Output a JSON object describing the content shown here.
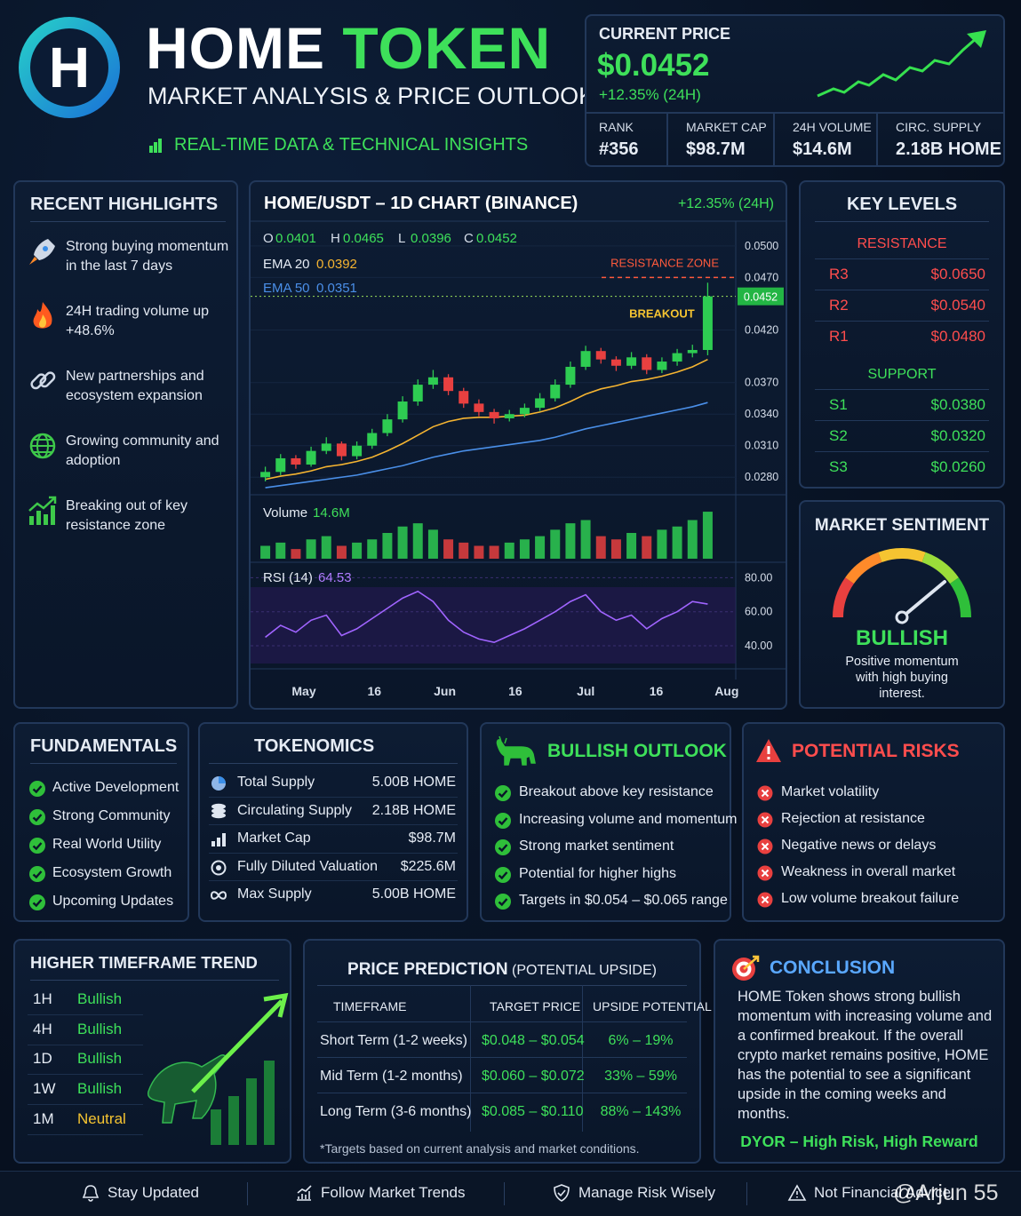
{
  "header": {
    "logo": "H",
    "title_1": "HOME",
    "title_2": "TOKEN",
    "subtitle": "MARKET ANALYSIS & PRICE OUTLOOK",
    "tagline": "REAL-TIME DATA & TECHNICAL INSIGHTS"
  },
  "price_card": {
    "label": "CURRENT PRICE",
    "price": "$0.0452",
    "change": "+12.35% (24H)",
    "stats": [
      {
        "label": "RANK",
        "value": "#356"
      },
      {
        "label": "MARKET CAP",
        "value": "$98.7M"
      },
      {
        "label": "24H VOLUME",
        "value": "$14.6M"
      },
      {
        "label": "CIRC. SUPPLY",
        "value": "2.18B HOME"
      }
    ]
  },
  "highlights": {
    "title": "RECENT HIGHLIGHTS",
    "items": [
      "Strong buying momentum in the last 7 days",
      "24H trading volume up +48.6%",
      "New partnerships and ecosystem expansion",
      "Growing community and adoption",
      "Breaking out of key resistance zone"
    ]
  },
  "chart_data": {
    "type": "candlestick",
    "title": "HOME/USDT – 1D CHART (BINANCE)",
    "change": "+12.35% (24H)",
    "ohlc_labels": [
      "O",
      "H",
      "L",
      "C"
    ],
    "up_color": "#2ecc52",
    "down_color": "#e84040",
    "candles": [
      [
        0.028,
        0.029,
        0.0276,
        0.0285
      ],
      [
        0.0285,
        0.0302,
        0.0282,
        0.0298
      ],
      [
        0.0298,
        0.0301,
        0.0288,
        0.0292
      ],
      [
        0.0292,
        0.0309,
        0.029,
        0.0305
      ],
      [
        0.0305,
        0.0318,
        0.0302,
        0.0312
      ],
      [
        0.0312,
        0.0314,
        0.0296,
        0.03
      ],
      [
        0.03,
        0.0314,
        0.0297,
        0.031
      ],
      [
        0.031,
        0.0326,
        0.0307,
        0.0322
      ],
      [
        0.0322,
        0.034,
        0.0319,
        0.0335
      ],
      [
        0.0335,
        0.0357,
        0.0332,
        0.0352
      ],
      [
        0.0352,
        0.0373,
        0.0348,
        0.0368
      ],
      [
        0.0368,
        0.0382,
        0.0364,
        0.0375
      ],
      [
        0.0375,
        0.0378,
        0.0358,
        0.0362
      ],
      [
        0.0362,
        0.0365,
        0.0346,
        0.035
      ],
      [
        0.035,
        0.0354,
        0.0338,
        0.0342
      ],
      [
        0.0342,
        0.0345,
        0.0331,
        0.0336
      ],
      [
        0.0336,
        0.0344,
        0.0333,
        0.034
      ],
      [
        0.034,
        0.035,
        0.0337,
        0.0346
      ],
      [
        0.0346,
        0.036,
        0.0343,
        0.0355
      ],
      [
        0.0355,
        0.0373,
        0.0352,
        0.0368
      ],
      [
        0.0368,
        0.039,
        0.0365,
        0.0385
      ],
      [
        0.0385,
        0.0405,
        0.0382,
        0.04
      ],
      [
        0.04,
        0.0403,
        0.0388,
        0.0392
      ],
      [
        0.0392,
        0.0395,
        0.0381,
        0.0386
      ],
      [
        0.0386,
        0.0399,
        0.0383,
        0.0394
      ],
      [
        0.0394,
        0.0397,
        0.0378,
        0.0382
      ],
      [
        0.0382,
        0.0394,
        0.0379,
        0.039
      ],
      [
        0.039,
        0.0402,
        0.0386,
        0.0398
      ],
      [
        0.0398,
        0.0406,
        0.0394,
        0.0401
      ],
      [
        0.0401,
        0.0465,
        0.0396,
        0.0452
      ]
    ],
    "series": [
      {
        "name": "EMA 20",
        "color": "#f5b431",
        "values": [
          0.0278,
          0.0281,
          0.0283,
          0.0286,
          0.029,
          0.0292,
          0.0295,
          0.0299,
          0.0305,
          0.0312,
          0.032,
          0.0328,
          0.0333,
          0.0336,
          0.0337,
          0.0337,
          0.0338,
          0.0339,
          0.0342,
          0.0346,
          0.0352,
          0.0359,
          0.0364,
          0.0367,
          0.0371,
          0.0373,
          0.0376,
          0.038,
          0.0385,
          0.0392
        ]
      },
      {
        "name": "EMA 50",
        "color": "#4a8fe8",
        "values": [
          0.027,
          0.0272,
          0.0274,
          0.0276,
          0.0278,
          0.028,
          0.0282,
          0.0285,
          0.0288,
          0.0291,
          0.0295,
          0.0299,
          0.0302,
          0.0305,
          0.0307,
          0.0309,
          0.0311,
          0.0313,
          0.0315,
          0.0318,
          0.0322,
          0.0326,
          0.0329,
          0.0332,
          0.0335,
          0.0338,
          0.0341,
          0.0344,
          0.0347,
          0.0351
        ]
      }
    ],
    "ylim": [
      0.0265,
      0.051
    ],
    "yticks": [
      {
        "value": 0.05,
        "label": "0.0500"
      },
      {
        "value": 0.047,
        "label": "0.0470"
      },
      {
        "value": 0.042,
        "label": "0.0420"
      },
      {
        "value": 0.037,
        "label": "0.0370"
      },
      {
        "value": 0.034,
        "label": "0.0340"
      },
      {
        "value": 0.031,
        "label": "0.0310"
      },
      {
        "value": 0.028,
        "label": "0.0280"
      }
    ],
    "resistance": {
      "label": "RESISTANCE ZONE",
      "value": 0.047
    },
    "breakout_label": "BREAKOUT",
    "volume": {
      "label": "Volume",
      "reading": "14.6M",
      "ylim": [
        0,
        16
      ],
      "values": [
        4,
        5,
        3,
        6,
        7,
        4,
        5,
        6,
        8,
        10,
        11,
        9,
        6,
        5,
        4,
        4,
        5,
        6,
        7,
        9,
        11,
        12,
        7,
        6,
        8,
        7,
        9,
        10,
        12,
        14.6
      ]
    },
    "rsi": {
      "label": "RSI (14)",
      "color": "#a064ff",
      "ylim": [
        28,
        87
      ],
      "yticks": [
        {
          "value": 80,
          "label": "80.00"
        },
        {
          "value": 60,
          "label": "60.00"
        },
        {
          "value": 40,
          "label": "40.00"
        }
      ],
      "values": [
        45,
        52,
        48,
        55,
        58,
        46,
        50,
        56,
        62,
        68,
        72,
        66,
        55,
        48,
        44,
        42,
        46,
        50,
        55,
        60,
        66,
        70,
        60,
        55,
        58,
        50,
        56,
        60,
        66,
        64.53
      ]
    },
    "xtick_labels": [
      "May",
      "16",
      "Jun",
      "16",
      "Jul",
      "16",
      "Aug"
    ]
  },
  "key_levels": {
    "title": "KEY LEVELS",
    "resistance_title": "RESISTANCE",
    "resistance": [
      {
        "name": "R3",
        "value": "$0.0650"
      },
      {
        "name": "R2",
        "value": "$0.0540"
      },
      {
        "name": "R1",
        "value": "$0.0480"
      }
    ],
    "support_title": "SUPPORT",
    "support": [
      {
        "name": "S1",
        "value": "$0.0380"
      },
      {
        "name": "S2",
        "value": "$0.0320"
      },
      {
        "name": "S3",
        "value": "$0.0260"
      }
    ]
  },
  "sentiment": {
    "title": "MARKET SENTIMENT",
    "reading": "BULLISH",
    "description": "Positive momentum with high buying interest."
  },
  "fundamentals": {
    "title": "FUNDAMENTALS",
    "items": [
      "Active Development",
      "Strong Community",
      "Real World Utility",
      "Ecosystem Growth",
      "Upcoming Updates"
    ]
  },
  "tokenomics": {
    "title": "TOKENOMICS",
    "rows": [
      [
        "Total Supply",
        "5.00B HOME"
      ],
      [
        "Circulating Supply",
        "2.18B HOME"
      ],
      [
        "Market Cap",
        "$98.7M"
      ],
      [
        "Fully Diluted Valuation",
        "$225.6M"
      ],
      [
        "Max Supply",
        "5.00B HOME"
      ]
    ]
  },
  "bullish": {
    "title": "BULLISH OUTLOOK",
    "items": [
      "Breakout above key resistance",
      "Increasing volume and momentum",
      "Strong market sentiment",
      "Potential for higher highs",
      "Targets in $0.054 – $0.065 range"
    ]
  },
  "risks": {
    "title": "POTENTIAL RISKS",
    "items": [
      "Market volatility",
      "Rejection at resistance",
      "Negative news or delays",
      "Weakness in overall market",
      "Low volume breakout failure"
    ]
  },
  "trend": {
    "title": "HIGHER TIMEFRAME TREND",
    "rows": [
      {
        "timeframe": "1H",
        "status": "Bullish",
        "color": "#3ee05a"
      },
      {
        "timeframe": "4H",
        "status": "Bullish",
        "color": "#3ee05a"
      },
      {
        "timeframe": "1D",
        "status": "Bullish",
        "color": "#3ee05a"
      },
      {
        "timeframe": "1W",
        "status": "Bullish",
        "color": "#3ee05a"
      },
      {
        "timeframe": "1M",
        "status": "Neutral",
        "color": "#f5c431"
      }
    ]
  },
  "prediction": {
    "title": "PRICE PREDICTION",
    "title_note": "(POTENTIAL UPSIDE)",
    "headers": [
      "TIMEFRAME",
      "TARGET PRICE",
      "UPSIDE POTENTIAL"
    ],
    "rows": [
      [
        "Short Term (1-2 weeks)",
        "$0.048 – $0.054",
        "6% – 19%"
      ],
      [
        "Mid Term (1-2 months)",
        "$0.060 – $0.072",
        "33% – 59%"
      ],
      [
        "Long Term (3-6 months)",
        "$0.085 – $0.110",
        "88% – 143%"
      ]
    ],
    "footnote": "*Targets based on current analysis and market conditions."
  },
  "conclusion": {
    "title": "CONCLUSION",
    "text": "HOME Token shows strong bullish momentum with increasing volume and a confirmed breakout. If the overall crypto market remains positive, HOME has the potential to see a significant upside in the coming weeks and months.",
    "tagline": "DYOR – High Risk, High Reward"
  },
  "footer": {
    "items": [
      "Stay Updated",
      "Follow Market Trends",
      "Manage Risk Wisely",
      "Not Financial Advice"
    ],
    "watermark": "@Arjun 55"
  }
}
